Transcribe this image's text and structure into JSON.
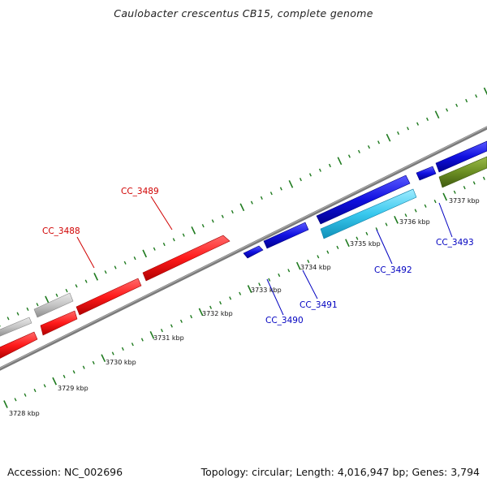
{
  "title": "Caulobacter crescentus CB15, complete genome",
  "footer": {
    "accession": "Accession: NC_002696",
    "summary": "Topology: circular; Length: 4,016,947 bp; Genes: 3,794"
  },
  "colors": {
    "forward_gene": "#ff1a1a",
    "reverse_gene": "#1010e0",
    "grey_gene": "#c4c4c4",
    "light_blue_gene": "#38c8ee",
    "green_gene": "#6b8e23",
    "backbone": "#888888",
    "tick": "#1e7a1e",
    "red_label": "#d00000",
    "blue_label": "#0000c0"
  },
  "ticks": {
    "outer_labels": [],
    "inner_labels": [
      "3728 kbp",
      "3729 kbp",
      "3730 kbp",
      "3731 kbp",
      "3732 kbp",
      "3733 kbp",
      "3734 kbp",
      "3735 kbp",
      "3736 kbp",
      "3737 kbp"
    ]
  },
  "gene_labels": [
    {
      "name": "CC_3488",
      "color": "red"
    },
    {
      "name": "CC_3489",
      "color": "red"
    },
    {
      "name": "CC_3490",
      "color": "blue"
    },
    {
      "name": "CC_3491",
      "color": "blue"
    },
    {
      "name": "CC_3492",
      "color": "blue"
    },
    {
      "name": "CC_3493",
      "color": "blue"
    }
  ]
}
